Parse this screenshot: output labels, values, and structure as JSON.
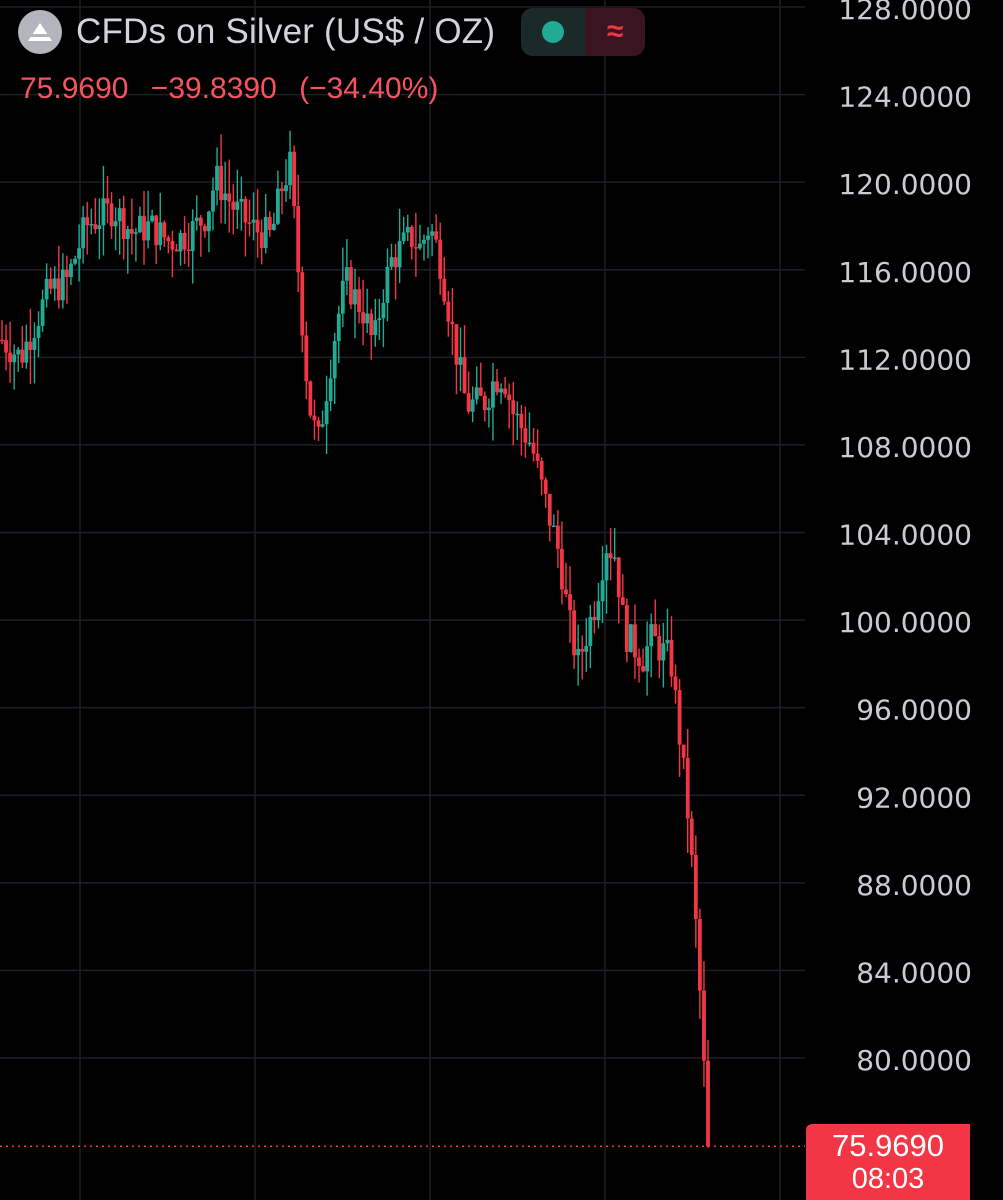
{
  "header": {
    "title": "CFDs on Silver (US$ / OZ)",
    "last_price": "75.9690",
    "change": "−39.8390",
    "change_pct": "(−34.40%)",
    "wave_glyph": "≈"
  },
  "price_badge": {
    "price": "75.9690",
    "countdown": "08:03"
  },
  "colors": {
    "up": "#22ab94",
    "down": "#f23645",
    "grid": "#1c1f26",
    "axis_text": "#c8cbd2",
    "background": "#000000"
  },
  "chart_data": {
    "type": "candlestick",
    "ylim": [
      76,
      128
    ],
    "y_ticks": [
      "128.0000",
      "124.0000",
      "120.0000",
      "116.0000",
      "112.0000",
      "108.0000",
      "104.0000",
      "100.0000",
      "96.0000",
      "92.0000",
      "88.0000",
      "84.0000",
      "80.0000"
    ],
    "last_price": 75.969,
    "path": [
      [
        0,
        112.8
      ],
      [
        2,
        112.0
      ],
      [
        5,
        115.0
      ],
      [
        7,
        115.5
      ],
      [
        9,
        118.0
      ],
      [
        12,
        118.8
      ],
      [
        14,
        117.7
      ],
      [
        16,
        118.0
      ],
      [
        18,
        117.3
      ],
      [
        20,
        117.6
      ],
      [
        22,
        118.5
      ],
      [
        23,
        120.2
      ],
      [
        25,
        118.8
      ],
      [
        27,
        117.9
      ],
      [
        29,
        117.5
      ],
      [
        30,
        119.6
      ],
      [
        31,
        120.8
      ],
      [
        33,
        110.0
      ],
      [
        34,
        108.0
      ],
      [
        36,
        113.5
      ],
      [
        37,
        115.5
      ],
      [
        39,
        114.0
      ],
      [
        40,
        112.5
      ],
      [
        41,
        115.0
      ],
      [
        42,
        116.5
      ],
      [
        44,
        117.5
      ],
      [
        45,
        117.0
      ],
      [
        46,
        118.0
      ],
      [
        47,
        116.8
      ],
      [
        49,
        112.0
      ],
      [
        50,
        109.8
      ],
      [
        52,
        110.0
      ],
      [
        53,
        111.0
      ],
      [
        54,
        111.2
      ],
      [
        55,
        109.5
      ],
      [
        57,
        108.0
      ],
      [
        58,
        106.2
      ],
      [
        60,
        103.0
      ],
      [
        61,
        100.0
      ],
      [
        62,
        98.0
      ],
      [
        64,
        101.0
      ],
      [
        65,
        103.5
      ],
      [
        66,
        103.0
      ],
      [
        67,
        99.5
      ],
      [
        68,
        98.8
      ],
      [
        69,
        98.3
      ],
      [
        70,
        99.2
      ],
      [
        71,
        98.6
      ],
      [
        72,
        98.2
      ],
      [
        73,
        94.5
      ],
      [
        74,
        90.5
      ],
      [
        75,
        84.0
      ],
      [
        76,
        75.969
      ]
    ]
  }
}
